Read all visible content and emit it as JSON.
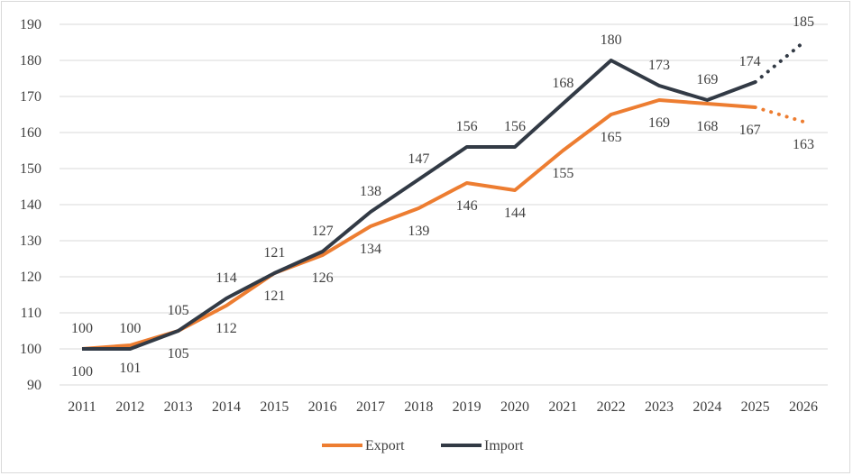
{
  "chart_data": {
    "type": "line",
    "title": "",
    "xlabel": "",
    "ylabel": "",
    "x": [
      2011,
      2012,
      2013,
      2014,
      2015,
      2016,
      2017,
      2018,
      2019,
      2020,
      2021,
      2022,
      2023,
      2024,
      2025,
      2026
    ],
    "ylim": [
      90,
      190
    ],
    "yticks": [
      90,
      100,
      110,
      120,
      130,
      140,
      150,
      160,
      170,
      180,
      190
    ],
    "grid": true,
    "legend": "bottom",
    "forecast_from": 2025,
    "series": [
      {
        "name": "Export",
        "color": "#ed7d31",
        "label_position": "below",
        "values": [
          100,
          101,
          105,
          112,
          121,
          126,
          134,
          139,
          146,
          144,
          155,
          165,
          169,
          168,
          167,
          163
        ]
      },
      {
        "name": "Import",
        "color": "#323a45",
        "label_position": "above",
        "values": [
          100,
          100,
          105,
          114,
          121,
          127,
          138,
          147,
          156,
          156,
          168,
          180,
          173,
          169,
          174,
          185
        ]
      }
    ]
  }
}
